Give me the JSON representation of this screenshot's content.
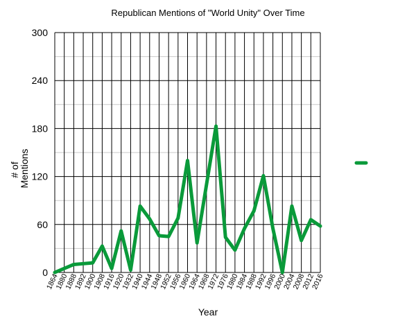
{
  "chart_data": {
    "type": "line",
    "title": "Republican Mentions of \"World Unity\" Over Time",
    "xlabel": "Year",
    "ylabel": [
      "# of",
      "Mentions"
    ],
    "ylim": [
      0,
      300
    ],
    "y_ticks": [
      0,
      60,
      120,
      180,
      240,
      300
    ],
    "grid": true,
    "legend_placement": "right",
    "categories": [
      "1864",
      "1880",
      "1888",
      "1892",
      "1900",
      "1908",
      "1916",
      "1920",
      "1932",
      "1940",
      "1944",
      "1948",
      "1952",
      "1956",
      "1960",
      "1964",
      "1968",
      "1972",
      "1976",
      "1980",
      "1984",
      "1988",
      "1992",
      "1996",
      "2000",
      "2004",
      "2008",
      "2012",
      "2016"
    ],
    "series": [
      {
        "color": "#0a9a3a",
        "values": [
          0,
          5,
          10,
          11,
          12,
          33,
          5,
          52,
          3,
          83,
          67,
          46,
          45,
          68,
          140,
          37,
          110,
          183,
          44,
          28,
          55,
          77,
          121,
          55,
          0,
          83,
          40,
          66,
          58
        ]
      }
    ]
  }
}
